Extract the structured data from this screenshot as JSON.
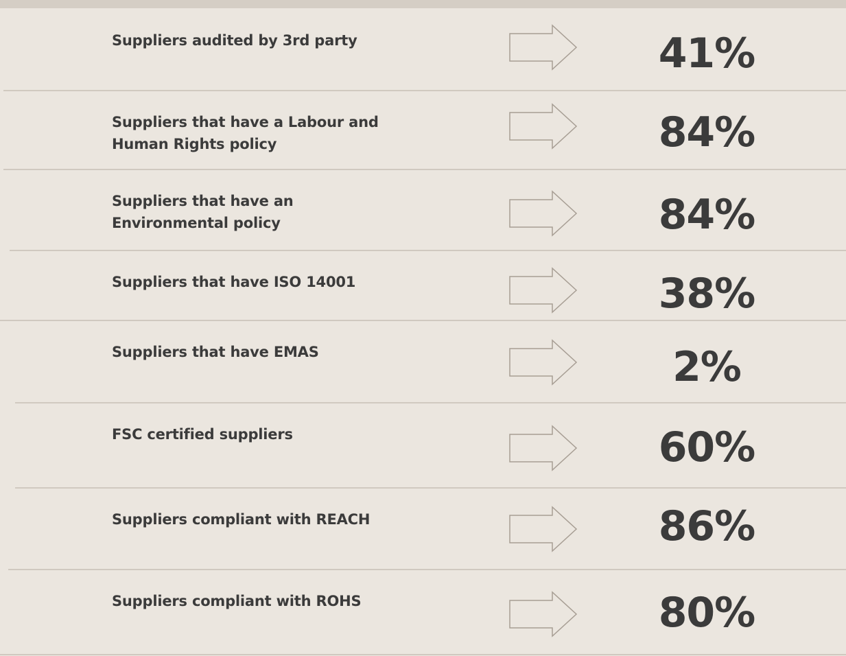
{
  "rows": [
    {
      "label": "Suppliers audited by 3rd party",
      "value": "41%"
    },
    {
      "label": "Suppliers that have a Labour and Human Rights policy",
      "value": "84%"
    },
    {
      "label": "Suppliers that have an Environmental policy",
      "value": "84%"
    },
    {
      "label": "Suppliers that have ISO 14001",
      "value": "38%"
    },
    {
      "label": "Suppliers that have EMAS",
      "value": "2%"
    },
    {
      "label": "FSC certified suppliers",
      "value": "60%"
    },
    {
      "label": "Suppliers compliant with REACH",
      "value": "86%"
    },
    {
      "label": "Suppliers compliant with ROHS",
      "value": "80%"
    }
  ]
}
